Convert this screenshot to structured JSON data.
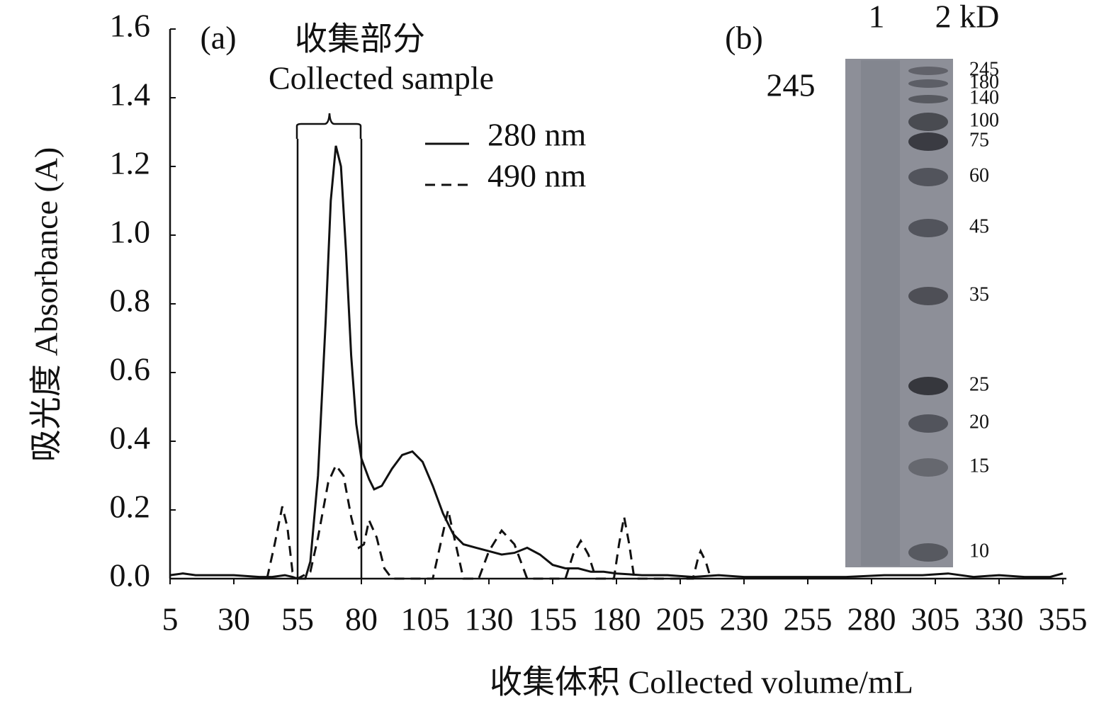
{
  "chart_data": {
    "type": "line",
    "panel_label": "(a)",
    "annotation_cn": "收集部分",
    "annotation_en": "Collected sample",
    "x_label": "收集体积  Collected volume/mL",
    "y_label": "吸光度 Absorbance (A)",
    "xlim": [
      5,
      355
    ],
    "xticks": [
      5,
      30,
      55,
      80,
      105,
      130,
      155,
      180,
      205,
      230,
      255,
      280,
      305,
      330,
      355
    ],
    "ylim": [
      0,
      1.6
    ],
    "yticks": [
      {
        "value": 0,
        "label": "0.0"
      },
      0.2,
      0.4,
      0.6,
      0.8,
      {
        "value": 1,
        "label": "1.0"
      },
      1.2,
      1.4,
      1.6
    ],
    "highlight_x": [
      55,
      80
    ],
    "series": [
      {
        "name": "280 nm",
        "color": "#111111",
        "dashed": false,
        "x": [
          5,
          10,
          15,
          20,
          30,
          40,
          45,
          50,
          53,
          55,
          58,
          60,
          63,
          66,
          68,
          70,
          72,
          74,
          76,
          78,
          80,
          83,
          85,
          88,
          92,
          96,
          100,
          104,
          108,
          112,
          116,
          120,
          125,
          130,
          135,
          140,
          145,
          150,
          155,
          160,
          165,
          170,
          175,
          180,
          190,
          200,
          210,
          220,
          230,
          250,
          270,
          285,
          300,
          310,
          320,
          330,
          340,
          350,
          355
        ],
        "values": [
          0.01,
          0.015,
          0.01,
          0.01,
          0.01,
          0.005,
          0.005,
          0.01,
          0.005,
          0,
          0,
          0.05,
          0.3,
          0.75,
          1.1,
          1.26,
          1.2,
          0.95,
          0.65,
          0.45,
          0.35,
          0.29,
          0.26,
          0.27,
          0.32,
          0.36,
          0.37,
          0.34,
          0.27,
          0.19,
          0.13,
          0.1,
          0.09,
          0.08,
          0.07,
          0.075,
          0.09,
          0.07,
          0.04,
          0.03,
          0.03,
          0.02,
          0.02,
          0.015,
          0.01,
          0.01,
          0.005,
          0.01,
          0.005,
          0.005,
          0.005,
          0.01,
          0.01,
          0.015,
          0.005,
          0.01,
          0.005,
          0.005,
          0.015
        ]
      },
      {
        "name": "490 nm",
        "color": "#111111",
        "dashed": true,
        "x": [
          43,
          46,
          49,
          51,
          53,
          55,
          60,
          63,
          67,
          70,
          73,
          76,
          79,
          81,
          83,
          86,
          89,
          92,
          108,
          111,
          114,
          117,
          120,
          126,
          130,
          135,
          140,
          145,
          160,
          163,
          166,
          169,
          172,
          179,
          181,
          183,
          185,
          187,
          210,
          212,
          213,
          215,
          217
        ],
        "values": [
          0,
          0.1,
          0.21,
          0.15,
          0.02,
          0,
          0.02,
          0.12,
          0.28,
          0.33,
          0.3,
          0.18,
          0.09,
          0.1,
          0.17,
          0.12,
          0.03,
          0,
          0,
          0.1,
          0.2,
          0.1,
          0,
          0,
          0.08,
          0.14,
          0.1,
          0,
          0,
          0.07,
          0.11,
          0.07,
          0,
          0,
          0.1,
          0.18,
          0.1,
          0,
          0,
          0.06,
          0.08,
          0.05,
          0
        ]
      }
    ],
    "inset": {
      "panel_label": "(b)",
      "lanes": [
        "1",
        "2 kD"
      ],
      "side_label": "245",
      "markers": [
        "245",
        "180",
        "140",
        "100",
        "75",
        "60",
        "45",
        "35",
        "25",
        "20",
        "15",
        "10"
      ]
    }
  }
}
